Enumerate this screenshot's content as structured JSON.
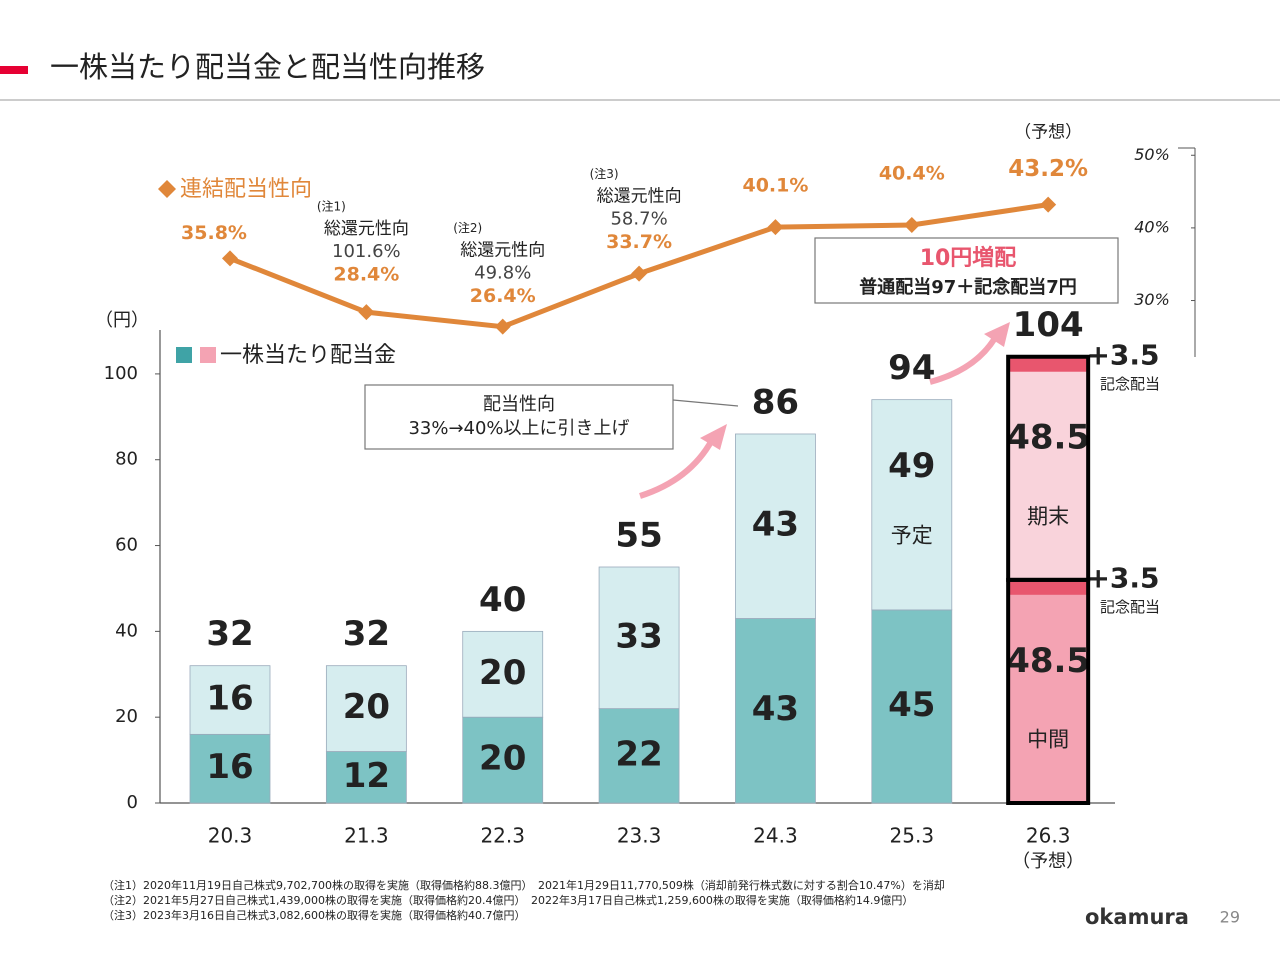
{
  "header": {
    "title": "一株当たり配当金と配当性向推移"
  },
  "chart_data": {
    "type": "bar",
    "stacked": true,
    "categories": [
      "20.3",
      "21.3",
      "22.3",
      "23.3",
      "24.3",
      "25.3",
      "26.3"
    ],
    "category_notes": [
      null,
      null,
      null,
      null,
      null,
      null,
      "（予想）"
    ],
    "y_unit": "（円）",
    "ylim": [
      0,
      110
    ],
    "yticks": [
      0,
      20,
      40,
      60,
      80,
      100
    ],
    "legend": "一株当たり配当金",
    "legend_colors": [
      "#3fa3a6",
      "#f4a3b3"
    ],
    "series": [
      {
        "name": "中間",
        "color": "#7dc3c4",
        "forecast_color": "#f4a3b3",
        "values": [
          16,
          12,
          20,
          22,
          43,
          45,
          48.5
        ]
      },
      {
        "name": "記念配当",
        "color": "#e8566e",
        "values": [
          null,
          null,
          null,
          null,
          null,
          null,
          3.5
        ],
        "value_labels": [
          null,
          null,
          null,
          null,
          null,
          null,
          "+3.5"
        ]
      },
      {
        "name": "期末",
        "color": "#d6edef",
        "forecast_color": "#f9d3db",
        "values": [
          16,
          20,
          20,
          33,
          43,
          49,
          48.5
        ],
        "notes": [
          null,
          null,
          null,
          null,
          null,
          "予定",
          null
        ]
      },
      {
        "name": "記念配当",
        "color": "#e8566e",
        "values": [
          null,
          null,
          null,
          null,
          null,
          null,
          3.5
        ],
        "value_labels": [
          null,
          null,
          null,
          null,
          null,
          null,
          "+3.5"
        ]
      },
      {
        "type": "line",
        "axis": "y2",
        "name": "連結配当性向",
        "color": "#e0873a",
        "values": [
          35.8,
          28.4,
          26.4,
          33.7,
          40.1,
          40.4,
          43.2
        ],
        "value_labels": [
          "35.8%",
          "28.4%",
          "26.4%",
          "33.7%",
          "40.1%",
          "40.4%",
          "43.2%"
        ]
      }
    ],
    "totals": [
      32,
      32,
      40,
      55,
      86,
      94,
      104
    ],
    "y2lim": [
      22.5,
      51
    ],
    "y2ticks": [
      {
        "value": 50,
        "label": "50%"
      },
      {
        "value": 40,
        "label": "40%"
      },
      {
        "value": 30,
        "label": "30%"
      }
    ],
    "total_return": [
      null,
      {
        "note": "(注1)",
        "label": "総還元性向",
        "value": "101.6%"
      },
      {
        "note": "(注2)",
        "label": "総還元性向",
        "value": "49.8%"
      },
      {
        "note": "(注3)",
        "label": "総還元性向",
        "value": "58.7%"
      },
      null,
      null,
      null
    ],
    "forecast_label": "（予想）",
    "callouts": {
      "payout": [
        "配当性向",
        "33%→40%以上に引き上げ"
      ],
      "increase": "10円増配",
      "breakdown": "普通配当97＋記念配当7円"
    }
  },
  "footnotes": [
    "（注1）2020年11月19日自己株式9,702,700株の取得を実施（取得価格約88.3億円）　2021年1月29日11,770,509株（消却前発行株式数に対する割合10.47%）を消却",
    "（注2）2021年5月27日自己株式1,439,000株の取得を実施（取得価格約20.4億円）　2022年3月17日自己株式1,259,600株の取得を実施（取得価格約14.9億円）",
    "（注3）2023年3月16日自己株式3,082,600株の取得を実施（取得価格約40.7億円）"
  ],
  "logo": "okamura",
  "page_number": "29"
}
